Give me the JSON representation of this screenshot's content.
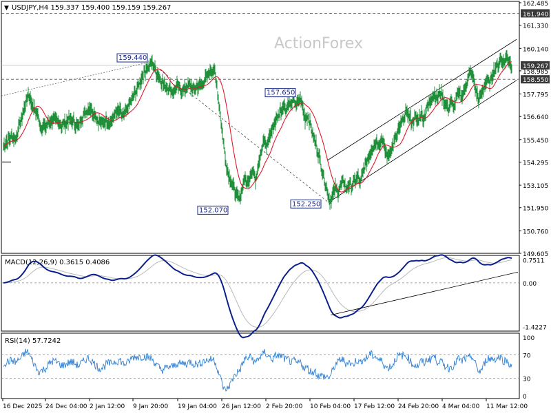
{
  "header": {
    "symbol_line": "USDJPY,H4  159.337 159.400 159.159 159.267"
  },
  "watermark": "ActionForex",
  "colors": {
    "candle": "#1f8f3a",
    "ma": "#e0182a",
    "macd_line": "#0a1f8c",
    "macd_signal": "#b8b8b8",
    "rsi_line": "#2d7fd4",
    "trendline": "#000000",
    "label_box": "#1a2b8a",
    "price_tag_bg": "#3a3a3a",
    "grid_dash": "#999999"
  },
  "chart_data": [
    {
      "type": "line",
      "name": "price",
      "x_axis": {
        "labels": [
          "16 Dec 2025",
          "24 Dec 04:00",
          "2 Jan 12:00",
          "9 Jan 20:00",
          "19 Jan 04:00",
          "26 Jan 12:00",
          "2 Feb 20:00",
          "10 Feb 04:00",
          "17 Feb 12:00",
          "24 Feb 20:00",
          "4 Mar 04:00",
          "11 Mar 12:00"
        ]
      },
      "y_axis": {
        "ticks": [
          "162.485",
          "161.330",
          "160.140",
          "158.985",
          "157.795",
          "156.640",
          "155.450",
          "154.295",
          "153.105",
          "151.950",
          "150.760",
          "149.605"
        ],
        "range": [
          149.605,
          162.485
        ]
      },
      "price_tags": [
        {
          "value": 161.94,
          "label": "161.940",
          "style": "dark"
        },
        {
          "value": 159.267,
          "label": "159.267",
          "style": "dark"
        },
        {
          "value": 158.55,
          "label": "158.550",
          "style": "dark"
        }
      ],
      "horizontal_levels": [
        161.94,
        158.55,
        159.267
      ],
      "annotations": [
        {
          "label": "159.440"
        },
        {
          "label": "157.650"
        },
        {
          "label": "152.070"
        },
        {
          "label": "152.250"
        }
      ],
      "close_path": [
        [
          0,
          155.1
        ],
        [
          6,
          155.4
        ],
        [
          12,
          155.6
        ],
        [
          18,
          155.5
        ],
        [
          24,
          156.3
        ],
        [
          30,
          157.0
        ],
        [
          36,
          157.8
        ],
        [
          42,
          157.2
        ],
        [
          48,
          156.8
        ],
        [
          54,
          156.2
        ],
        [
          60,
          156.1
        ],
        [
          66,
          156.3
        ],
        [
          72,
          156.5
        ],
        [
          78,
          156.4
        ],
        [
          84,
          156.2
        ],
        [
          90,
          156.3
        ],
        [
          96,
          156.5
        ],
        [
          102,
          156.4
        ],
        [
          108,
          156.1
        ],
        [
          114,
          156.6
        ],
        [
          120,
          156.9
        ],
        [
          126,
          157.1
        ],
        [
          132,
          156.8
        ],
        [
          138,
          156.4
        ],
        [
          144,
          156.3
        ],
        [
          150,
          156.5
        ],
        [
          156,
          156.3
        ],
        [
          162,
          156.8
        ],
        [
          168,
          156.9
        ],
        [
          174,
          156.6
        ],
        [
          180,
          157.0
        ],
        [
          186,
          157.5
        ],
        [
          192,
          157.9
        ],
        [
          198,
          158.4
        ],
        [
          204,
          158.9
        ],
        [
          210,
          159.2
        ],
        [
          216,
          159.44
        ],
        [
          222,
          158.9
        ],
        [
          228,
          158.5
        ],
        [
          234,
          158.3
        ],
        [
          240,
          158.1
        ],
        [
          246,
          157.9
        ],
        [
          252,
          158.2
        ],
        [
          258,
          157.9
        ],
        [
          264,
          158.1
        ],
        [
          270,
          158.3
        ],
        [
          276,
          158.0
        ],
        [
          282,
          158.2
        ],
        [
          288,
          158.3
        ],
        [
          294,
          158.6
        ],
        [
          300,
          158.9
        ],
        [
          306,
          159.1
        ],
        [
          310,
          158.2
        ],
        [
          314,
          157.0
        ],
        [
          318,
          155.8
        ],
        [
          322,
          154.5
        ],
        [
          326,
          153.8
        ],
        [
          330,
          153.4
        ],
        [
          334,
          153.0
        ],
        [
          338,
          152.6
        ],
        [
          342,
          152.4
        ],
        [
          346,
          152.8
        ],
        [
          350,
          153.5
        ],
        [
          354,
          153.2
        ],
        [
          358,
          153.6
        ],
        [
          362,
          153.9
        ],
        [
          366,
          153.4
        ],
        [
          370,
          154.2
        ],
        [
          374,
          154.9
        ],
        [
          378,
          155.4
        ],
        [
          382,
          155.1
        ],
        [
          386,
          155.6
        ],
        [
          390,
          155.9
        ],
        [
          394,
          156.3
        ],
        [
          398,
          156.6
        ],
        [
          402,
          156.9
        ],
        [
          406,
          157.2
        ],
        [
          410,
          157.0
        ],
        [
          414,
          157.4
        ],
        [
          418,
          157.2
        ],
        [
          422,
          157.5
        ],
        [
          426,
          157.2
        ],
        [
          430,
          157.6
        ],
        [
          434,
          157.2
        ],
        [
          438,
          156.5
        ],
        [
          442,
          156.7
        ],
        [
          446,
          156.2
        ],
        [
          450,
          155.6
        ],
        [
          454,
          155.2
        ],
        [
          458,
          154.6
        ],
        [
          462,
          154.0
        ],
        [
          466,
          153.4
        ],
        [
          470,
          152.8
        ],
        [
          474,
          152.25
        ],
        [
          478,
          152.6
        ],
        [
          482,
          153.0
        ],
        [
          486,
          152.7
        ],
        [
          490,
          153.1
        ],
        [
          494,
          153.3
        ],
        [
          498,
          152.9
        ],
        [
          502,
          153.2
        ],
        [
          506,
          153.0
        ],
        [
          510,
          153.3
        ],
        [
          514,
          153.6
        ],
        [
          518,
          153.2
        ],
        [
          522,
          153.8
        ],
        [
          526,
          154.2
        ],
        [
          530,
          154.6
        ],
        [
          534,
          154.9
        ],
        [
          538,
          155.2
        ],
        [
          542,
          155.4
        ],
        [
          546,
          155.2
        ],
        [
          550,
          155.5
        ],
        [
          554,
          154.9
        ],
        [
          558,
          154.6
        ],
        [
          562,
          154.9
        ],
        [
          566,
          155.2
        ],
        [
          570,
          155.6
        ],
        [
          574,
          155.9
        ],
        [
          578,
          156.3
        ],
        [
          582,
          156.6
        ],
        [
          586,
          156.9
        ],
        [
          590,
          156.6
        ],
        [
          594,
          156.3
        ],
        [
          598,
          156.6
        ],
        [
          602,
          156.4
        ],
        [
          606,
          156.8
        ],
        [
          610,
          156.5
        ],
        [
          614,
          157.0
        ],
        [
          618,
          157.3
        ],
        [
          622,
          157.6
        ],
        [
          626,
          157.8
        ],
        [
          630,
          157.5
        ],
        [
          634,
          157.9
        ],
        [
          638,
          157.6
        ],
        [
          642,
          157.3
        ],
        [
          646,
          157.0
        ],
        [
          650,
          157.4
        ],
        [
          654,
          157.1
        ],
        [
          658,
          157.6
        ],
        [
          662,
          157.9
        ],
        [
          666,
          157.6
        ],
        [
          670,
          158.1
        ],
        [
          674,
          158.5
        ],
        [
          678,
          158.9
        ],
        [
          682,
          158.6
        ],
        [
          686,
          158.0
        ],
        [
          690,
          157.5
        ],
        [
          694,
          157.8
        ],
        [
          698,
          158.2
        ],
        [
          702,
          158.5
        ],
        [
          706,
          158.3
        ],
        [
          710,
          158.8
        ],
        [
          714,
          159.1
        ],
        [
          718,
          159.3
        ],
        [
          722,
          159.6
        ],
        [
          726,
          159.4
        ],
        [
          730,
          159.7
        ],
        [
          734,
          159.5
        ],
        [
          738,
          159.267
        ]
      ]
    },
    {
      "type": "line",
      "name": "MACD",
      "header": "MACD(12,26,9)  0.3615 0.4086",
      "y_axis": {
        "ticks": [
          "0.7511",
          "0.00",
          "-1.4227"
        ],
        "range": [
          -1.55,
          0.85
        ]
      },
      "levels": [
        0.0
      ]
    },
    {
      "type": "line",
      "name": "RSI",
      "header": "RSI(14)  57.7242",
      "y_axis": {
        "ticks": [
          "100",
          "70",
          "30",
          "0"
        ],
        "range": [
          0,
          100
        ]
      },
      "levels": [
        70,
        30
      ]
    }
  ]
}
